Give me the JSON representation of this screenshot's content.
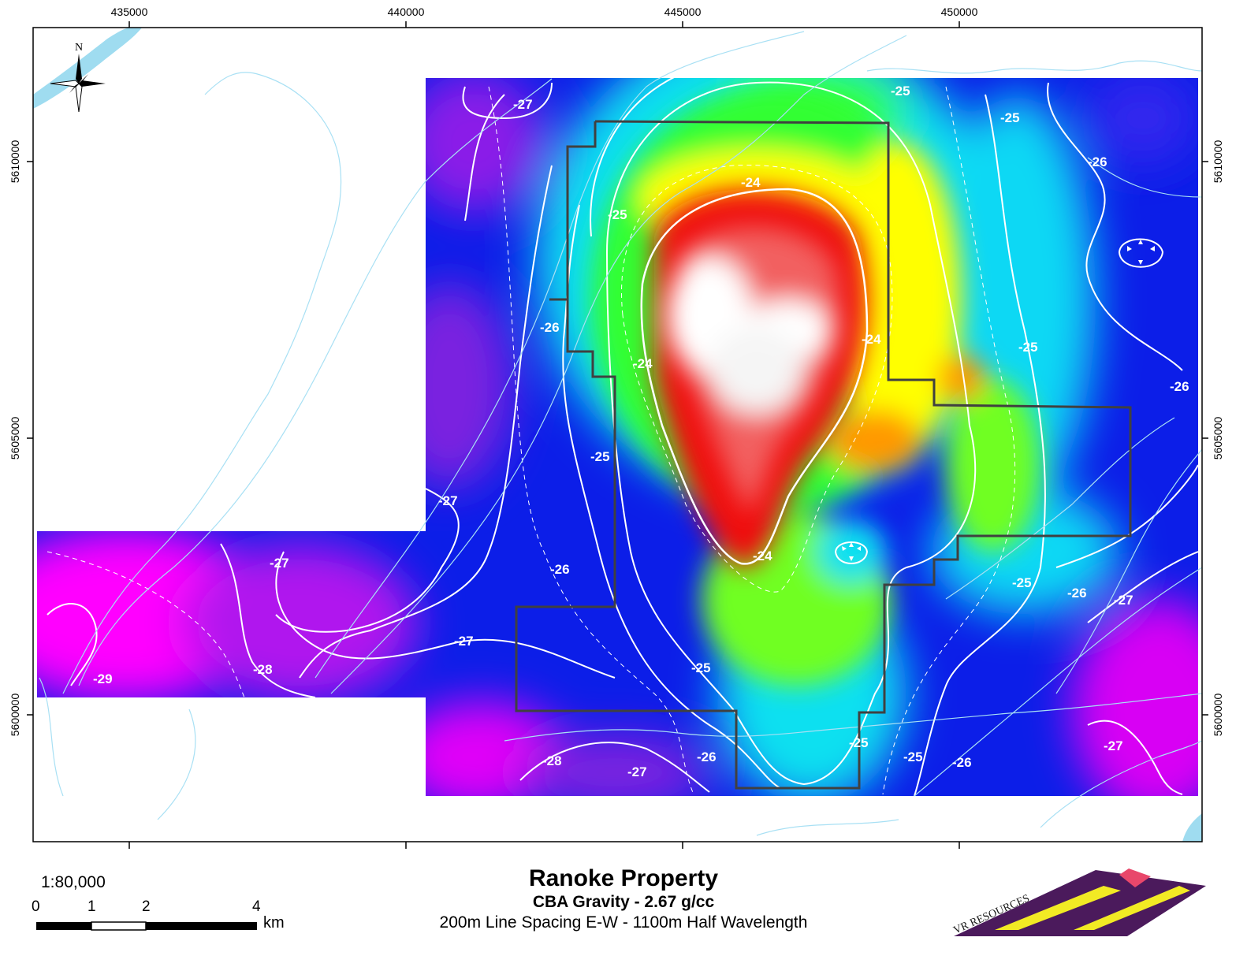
{
  "map": {
    "title": "Ranoke Property",
    "subtitle": "CBA Gravity - 2.67 g/cc",
    "description": "200m Line Spacing E-W - 1100m Half Wavelength",
    "scale_ratio": "1:80,000",
    "scale_bar": {
      "ticks": [
        "0",
        "1",
        "2",
        "4"
      ],
      "unit": "km"
    },
    "north_label": "N",
    "logo_text": "VR RESOURCES",
    "x_ticks": [
      "435000",
      "440000",
      "445000",
      "450000"
    ],
    "y_ticks": [
      "5610000",
      "5605000",
      "5600000"
    ],
    "contour_labels": [
      "-27",
      "-25",
      "-25",
      "-26",
      "-24",
      "-25",
      "-26",
      "-24",
      "-24",
      "-25",
      "-26",
      "-25",
      "-25",
      "-27",
      "-26",
      "-24",
      "-26",
      "-27",
      "-27",
      "-28",
      "-29",
      "-25",
      "-25",
      "-26",
      "-27",
      "-28",
      "-27",
      "-25",
      "-26",
      "-27",
      "-28"
    ],
    "colors": {
      "magenta": "#ff00ff",
      "purple": "#7a20e0",
      "blue": "#0c1ee8",
      "cyan": "#10e0f0",
      "green": "#30ff30",
      "yellow": "#ffff00",
      "orange": "#ff9900",
      "red": "#f01010",
      "white_peak": "#ffffff",
      "stream": "#a8e0f4",
      "river": "#9fdcf0",
      "logo_purple": "#4b1a5c",
      "logo_yellow": "#f2ea24",
      "logo_pink": "#e8476b"
    }
  }
}
